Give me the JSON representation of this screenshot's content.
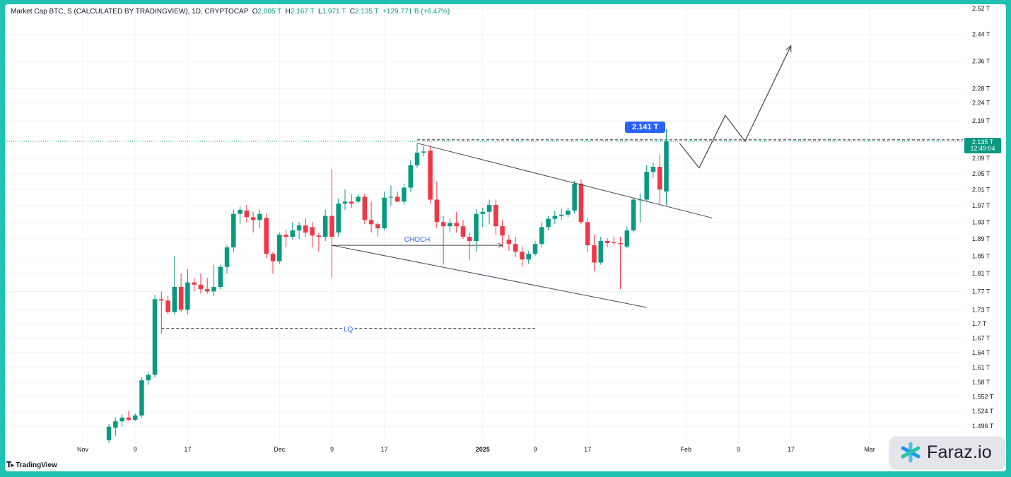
{
  "legend": {
    "title": "Market Cap BTC, S (CALCULATED BY TRADINGVIEW), 1D, CRYPTOCAP",
    "o_label": "O",
    "o_value": "2.005 T",
    "h_label": "H",
    "h_value": "2.167 T",
    "l_label": "L",
    "l_value": "1.971 T",
    "c_label": "C",
    "c_value": "2.135 T",
    "change": "+129.771 B (+6.47%)"
  },
  "current_price": {
    "value": "2.135 T",
    "countdown": "12:49:04"
  },
  "target_label": "2.141 T",
  "annotations": {
    "choch": "CHOCH",
    "lq": "LQ"
  },
  "branding": {
    "tradingview": "TradingView",
    "watermark": "Faraz.io"
  },
  "colors": {
    "up": "#089981",
    "down": "#f23645",
    "accent": "#2962ff",
    "frame": "#1fc1b3"
  },
  "chart_data": {
    "type": "candlestick",
    "title": "Market Cap BTC, S (CALCULATED BY TRADINGVIEW), 1D, CRYPTOCAP",
    "y_scale": "log",
    "ylim": [
      1.47,
      2.53
    ],
    "y_ticks": [
      {
        "label": "2.52 T",
        "value": 2.52
      },
      {
        "label": "2.44 T",
        "value": 2.44
      },
      {
        "label": "2.36 T",
        "value": 2.36
      },
      {
        "label": "2.28 T",
        "value": 2.28
      },
      {
        "label": "2.24 T",
        "value": 2.24
      },
      {
        "label": "2.19 T",
        "value": 2.19
      },
      {
        "label": "2.09 T",
        "value": 2.09
      },
      {
        "label": "2.05 T",
        "value": 2.05
      },
      {
        "label": "2.01 T",
        "value": 2.01
      },
      {
        "label": "1.97 T",
        "value": 1.97
      },
      {
        "label": "1.93 T",
        "value": 1.93
      },
      {
        "label": "1.89 T",
        "value": 1.89
      },
      {
        "label": "1.85 T",
        "value": 1.85
      },
      {
        "label": "1.81 T",
        "value": 1.81
      },
      {
        "label": "1.77 T",
        "value": 1.77
      },
      {
        "label": "1.73 T",
        "value": 1.73
      },
      {
        "label": "1.7 T",
        "value": 1.7
      },
      {
        "label": "1.67 T",
        "value": 1.67
      },
      {
        "label": "1.64 T",
        "value": 1.64
      },
      {
        "label": "1.61 T",
        "value": 1.61
      },
      {
        "label": "1.58 T",
        "value": 1.58
      },
      {
        "label": "1.552 T",
        "value": 1.552
      },
      {
        "label": "1.524 T",
        "value": 1.524
      },
      {
        "label": "1.496 T",
        "value": 1.496
      }
    ],
    "x_ticks": [
      {
        "label": "Nov",
        "date": "2024-11-01"
      },
      {
        "label": "9",
        "date": "2024-11-09"
      },
      {
        "label": "17",
        "date": "2024-11-17"
      },
      {
        "label": "Dec",
        "date": "2024-12-01"
      },
      {
        "label": "9",
        "date": "2024-12-09"
      },
      {
        "label": "17",
        "date": "2024-12-17"
      },
      {
        "label": "2025",
        "date": "2025-01-01"
      },
      {
        "label": "9",
        "date": "2025-01-09"
      },
      {
        "label": "17",
        "date": "2025-01-17"
      },
      {
        "label": "Feb",
        "date": "2025-02-01"
      },
      {
        "label": "9",
        "date": "2025-02-09"
      },
      {
        "label": "17",
        "date": "2025-02-17"
      },
      {
        "label": "Mar",
        "date": "2025-03-01"
      }
    ],
    "candles": [
      {
        "date": "2024-11-05",
        "o": 1.47,
        "h": 1.5,
        "l": 1.465,
        "c": 1.495
      },
      {
        "date": "2024-11-06",
        "o": 1.493,
        "h": 1.512,
        "l": 1.478,
        "c": 1.505
      },
      {
        "date": "2024-11-07",
        "o": 1.505,
        "h": 1.518,
        "l": 1.495,
        "c": 1.512
      },
      {
        "date": "2024-11-08",
        "o": 1.512,
        "h": 1.525,
        "l": 1.505,
        "c": 1.508
      },
      {
        "date": "2024-11-09",
        "o": 1.508,
        "h": 1.52,
        "l": 1.505,
        "c": 1.516
      },
      {
        "date": "2024-11-10",
        "o": 1.516,
        "h": 1.59,
        "l": 1.512,
        "c": 1.584
      },
      {
        "date": "2024-11-11",
        "o": 1.584,
        "h": 1.6,
        "l": 1.575,
        "c": 1.595
      },
      {
        "date": "2024-11-12",
        "o": 1.595,
        "h": 1.762,
        "l": 1.59,
        "c": 1.753
      },
      {
        "date": "2024-11-13",
        "o": 1.753,
        "h": 1.77,
        "l": 1.68,
        "c": 1.75
      },
      {
        "date": "2024-11-14",
        "o": 1.75,
        "h": 1.76,
        "l": 1.72,
        "c": 1.725
      },
      {
        "date": "2024-11-15",
        "o": 1.725,
        "h": 1.85,
        "l": 1.72,
        "c": 1.78
      },
      {
        "date": "2024-11-16",
        "o": 1.78,
        "h": 1.81,
        "l": 1.725,
        "c": 1.73
      },
      {
        "date": "2024-11-17",
        "o": 1.73,
        "h": 1.82,
        "l": 1.72,
        "c": 1.79
      },
      {
        "date": "2024-11-18",
        "o": 1.79,
        "h": 1.8,
        "l": 1.77,
        "c": 1.785
      },
      {
        "date": "2024-11-19",
        "o": 1.785,
        "h": 1.81,
        "l": 1.765,
        "c": 1.775
      },
      {
        "date": "2024-11-20",
        "o": 1.775,
        "h": 1.8,
        "l": 1.765,
        "c": 1.77
      },
      {
        "date": "2024-11-21",
        "o": 1.77,
        "h": 1.83,
        "l": 1.76,
        "c": 1.78
      },
      {
        "date": "2024-11-22",
        "o": 1.78,
        "h": 1.83,
        "l": 1.775,
        "c": 1.825
      },
      {
        "date": "2024-11-23",
        "o": 1.825,
        "h": 1.875,
        "l": 1.81,
        "c": 1.87
      },
      {
        "date": "2024-11-24",
        "o": 1.87,
        "h": 1.96,
        "l": 1.86,
        "c": 1.95
      },
      {
        "date": "2024-11-25",
        "o": 1.95,
        "h": 1.968,
        "l": 1.925,
        "c": 1.96
      },
      {
        "date": "2024-11-26",
        "o": 1.958,
        "h": 1.972,
        "l": 1.93,
        "c": 1.942
      },
      {
        "date": "2024-11-27",
        "o": 1.942,
        "h": 1.955,
        "l": 1.905,
        "c": 1.935
      },
      {
        "date": "2024-11-28",
        "o": 1.935,
        "h": 1.96,
        "l": 1.915,
        "c": 1.95
      },
      {
        "date": "2024-11-29",
        "o": 1.94,
        "h": 1.95,
        "l": 1.845,
        "c": 1.855
      },
      {
        "date": "2024-11-30",
        "o": 1.855,
        "h": 1.86,
        "l": 1.81,
        "c": 1.838
      },
      {
        "date": "2024-12-01",
        "o": 1.838,
        "h": 1.905,
        "l": 1.832,
        "c": 1.9
      },
      {
        "date": "2024-12-02",
        "o": 1.9,
        "h": 1.912,
        "l": 1.87,
        "c": 1.895
      },
      {
        "date": "2024-12-03",
        "o": 1.895,
        "h": 1.93,
        "l": 1.888,
        "c": 1.91
      },
      {
        "date": "2024-12-04",
        "o": 1.91,
        "h": 1.93,
        "l": 1.89,
        "c": 1.922
      },
      {
        "date": "2024-12-05",
        "o": 1.922,
        "h": 1.94,
        "l": 1.895,
        "c": 1.905
      },
      {
        "date": "2024-12-06",
        "o": 1.918,
        "h": 1.93,
        "l": 1.87,
        "c": 1.898
      },
      {
        "date": "2024-12-07",
        "o": 1.898,
        "h": 1.905,
        "l": 1.86,
        "c": 1.895
      },
      {
        "date": "2024-12-08",
        "o": 1.895,
        "h": 1.96,
        "l": 1.885,
        "c": 1.945
      },
      {
        "date": "2024-12-09",
        "o": 1.945,
        "h": 2.062,
        "l": 1.8,
        "c": 1.895
      },
      {
        "date": "2024-12-10",
        "o": 1.905,
        "h": 1.988,
        "l": 1.895,
        "c": 1.975
      },
      {
        "date": "2024-12-11",
        "o": 1.975,
        "h": 2.01,
        "l": 1.96,
        "c": 1.98
      },
      {
        "date": "2024-12-12",
        "o": 1.98,
        "h": 1.998,
        "l": 1.965,
        "c": 1.975
      },
      {
        "date": "2024-12-13",
        "o": 1.98,
        "h": 1.998,
        "l": 1.975,
        "c": 1.992
      },
      {
        "date": "2024-12-14",
        "o": 1.992,
        "h": 2.0,
        "l": 1.925,
        "c": 1.935
      },
      {
        "date": "2024-12-15",
        "o": 1.935,
        "h": 1.98,
        "l": 1.905,
        "c": 1.925
      },
      {
        "date": "2024-12-16",
        "o": 1.925,
        "h": 1.93,
        "l": 1.895,
        "c": 1.915
      },
      {
        "date": "2024-12-17",
        "o": 1.915,
        "h": 2.005,
        "l": 1.91,
        "c": 1.99
      },
      {
        "date": "2024-12-18",
        "o": 1.99,
        "h": 2.02,
        "l": 1.97,
        "c": 1.992
      },
      {
        "date": "2024-12-19",
        "o": 1.992,
        "h": 2.005,
        "l": 1.98,
        "c": 1.98
      },
      {
        "date": "2024-12-20",
        "o": 1.98,
        "h": 2.025,
        "l": 1.972,
        "c": 2.015
      },
      {
        "date": "2024-12-21",
        "o": 2.015,
        "h": 2.085,
        "l": 2.005,
        "c": 2.072
      },
      {
        "date": "2024-12-22",
        "o": 2.072,
        "h": 2.13,
        "l": 2.065,
        "c": 2.105
      },
      {
        "date": "2024-12-23",
        "o": 2.105,
        "h": 2.122,
        "l": 2.095,
        "c": 2.108
      },
      {
        "date": "2024-12-24",
        "o": 2.11,
        "h": 2.12,
        "l": 1.975,
        "c": 1.985
      },
      {
        "date": "2024-12-25",
        "o": 1.985,
        "h": 2.03,
        "l": 1.915,
        "c": 1.93
      },
      {
        "date": "2024-12-26",
        "o": 1.93,
        "h": 1.945,
        "l": 1.83,
        "c": 1.92
      },
      {
        "date": "2024-12-27",
        "o": 1.92,
        "h": 1.94,
        "l": 1.905,
        "c": 1.928
      },
      {
        "date": "2024-12-28",
        "o": 1.928,
        "h": 1.955,
        "l": 1.905,
        "c": 1.92
      },
      {
        "date": "2024-12-29",
        "o": 1.92,
        "h": 1.935,
        "l": 1.89,
        "c": 1.895
      },
      {
        "date": "2024-12-30",
        "o": 1.895,
        "h": 1.905,
        "l": 1.84,
        "c": 1.885
      },
      {
        "date": "2024-12-31",
        "o": 1.885,
        "h": 1.962,
        "l": 1.86,
        "c": 1.95
      },
      {
        "date": "2025-01-01",
        "o": 1.95,
        "h": 1.965,
        "l": 1.918,
        "c": 1.955
      },
      {
        "date": "2025-01-02",
        "o": 1.955,
        "h": 1.985,
        "l": 1.925,
        "c": 1.972
      },
      {
        "date": "2025-01-03",
        "o": 1.972,
        "h": 1.985,
        "l": 1.9,
        "c": 1.92
      },
      {
        "date": "2025-01-04",
        "o": 1.92,
        "h": 1.935,
        "l": 1.87,
        "c": 1.898
      },
      {
        "date": "2025-01-05",
        "o": 1.888,
        "h": 1.9,
        "l": 1.862,
        "c": 1.878
      },
      {
        "date": "2025-01-06",
        "o": 1.878,
        "h": 1.895,
        "l": 1.848,
        "c": 1.86
      },
      {
        "date": "2025-01-07",
        "o": 1.86,
        "h": 1.872,
        "l": 1.825,
        "c": 1.842
      },
      {
        "date": "2025-01-08",
        "o": 1.842,
        "h": 1.862,
        "l": 1.832,
        "c": 1.855
      },
      {
        "date": "2025-01-09",
        "o": 1.855,
        "h": 1.885,
        "l": 1.85,
        "c": 1.878
      },
      {
        "date": "2025-01-10",
        "o": 1.878,
        "h": 1.93,
        "l": 1.87,
        "c": 1.918
      },
      {
        "date": "2025-01-11",
        "o": 1.918,
        "h": 1.945,
        "l": 1.91,
        "c": 1.938
      },
      {
        "date": "2025-01-12",
        "o": 1.938,
        "h": 1.958,
        "l": 1.925,
        "c": 1.945
      },
      {
        "date": "2025-01-13",
        "o": 1.945,
        "h": 1.962,
        "l": 1.935,
        "c": 1.948
      },
      {
        "date": "2025-01-14",
        "o": 1.948,
        "h": 1.965,
        "l": 1.942,
        "c": 1.958
      },
      {
        "date": "2025-01-15",
        "o": 1.958,
        "h": 2.032,
        "l": 1.95,
        "c": 2.025
      },
      {
        "date": "2025-01-16",
        "o": 2.025,
        "h": 2.035,
        "l": 1.925,
        "c": 1.93
      },
      {
        "date": "2025-01-17",
        "o": 1.93,
        "h": 1.94,
        "l": 1.86,
        "c": 1.875
      },
      {
        "date": "2025-01-18",
        "o": 1.875,
        "h": 1.9,
        "l": 1.815,
        "c": 1.835
      },
      {
        "date": "2025-01-19",
        "o": 1.835,
        "h": 1.895,
        "l": 1.83,
        "c": 1.885
      },
      {
        "date": "2025-01-20",
        "o": 1.885,
        "h": 1.892,
        "l": 1.87,
        "c": 1.88
      },
      {
        "date": "2025-01-21",
        "o": 1.882,
        "h": 1.895,
        "l": 1.875,
        "c": 1.88
      },
      {
        "date": "2025-01-22",
        "o": 1.88,
        "h": 1.895,
        "l": 1.775,
        "c": 1.878
      },
      {
        "date": "2025-01-23",
        "o": 1.872,
        "h": 1.92,
        "l": 1.868,
        "c": 1.91
      },
      {
        "date": "2025-01-24",
        "o": 1.91,
        "h": 1.99,
        "l": 1.905,
        "c": 1.985
      },
      {
        "date": "2025-01-25",
        "o": 1.985,
        "h": 2.0,
        "l": 1.93,
        "c": 1.985
      },
      {
        "date": "2025-01-26",
        "o": 1.985,
        "h": 2.072,
        "l": 1.98,
        "c": 2.055
      },
      {
        "date": "2025-01-27",
        "o": 2.055,
        "h": 2.08,
        "l": 2.04,
        "c": 2.068
      },
      {
        "date": "2025-01-28",
        "o": 2.068,
        "h": 2.1,
        "l": 1.975,
        "c": 2.01
      },
      {
        "date": "2025-01-29",
        "o": 2.005,
        "h": 2.167,
        "l": 1.971,
        "c": 2.135
      }
    ],
    "drawings": {
      "channel_upper": [
        {
          "date": "2024-12-22",
          "value": 2.13
        },
        {
          "date": "2025-02-05",
          "value": 1.94
        }
      ],
      "channel_lower": [
        {
          "date": "2024-12-09",
          "value": 1.875
        },
        {
          "date": "2025-01-26",
          "value": 1.735
        }
      ],
      "choch_level": {
        "from": "2024-12-09",
        "to": "2025-01-04",
        "value": 1.875
      },
      "lq_level": {
        "from": "2024-11-13",
        "to": "2025-01-09",
        "value": 1.69
      },
      "resistance_level": {
        "from": "2024-12-22",
        "to": "2025-03-25",
        "value": 2.135
      },
      "projection": [
        {
          "date": "2025-01-31",
          "value": 2.13
        },
        {
          "date": "2025-02-03",
          "value": 2.065
        },
        {
          "date": "2025-02-07",
          "value": 2.205
        },
        {
          "date": "2025-02-10",
          "value": 2.135
        },
        {
          "date": "2025-02-17",
          "value": 2.405
        }
      ]
    }
  }
}
